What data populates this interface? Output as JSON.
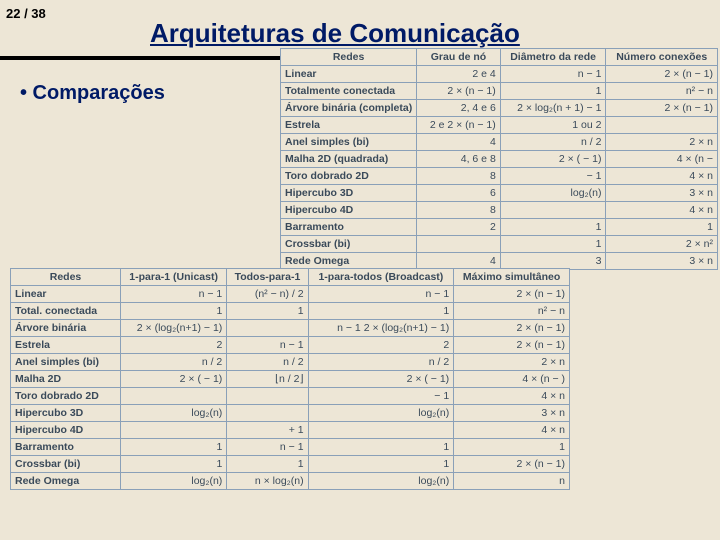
{
  "page_number": "22 / 38",
  "title": "Arquiteturas de Comunicação",
  "bullet_text": "•  Comparações",
  "table1": {
    "headers": [
      "Redes",
      "Grau de nó",
      "Diâmetro da rede",
      "Número conexões"
    ],
    "rows": [
      [
        "Linear",
        "2 e 4",
        "n − 1",
        "2 × (n − 1)"
      ],
      [
        "Totalmente conectada",
        "2 × (n − 1)",
        "1",
        "n² − n"
      ],
      [
        "Árvore binária (completa)",
        "2, 4 e 6",
        "2 × log₂(n + 1) − 1",
        "2 × (n − 1)"
      ],
      [
        "Estrela",
        "2 e 2 × (n − 1)",
        "1 ou 2",
        ""
      ],
      [
        "Anel simples (bi)",
        "4",
        "n / 2",
        "2 × n"
      ],
      [
        "Malha 2D (quadrada)",
        "4, 6 e 8",
        "2 × (     − 1)",
        "4 × (n −     "
      ],
      [
        "Toro dobrado 2D",
        "8",
        "     − 1",
        "4 × n"
      ],
      [
        "Hipercubo 3D",
        "6",
        "log₂(n)",
        "3 × n"
      ],
      [
        "Hipercubo 4D",
        "8",
        "",
        "4 × n"
      ],
      [
        "Barramento",
        "2",
        "1",
        "1"
      ],
      [
        "Crossbar (bi)",
        "",
        "1",
        "2 × n²"
      ],
      [
        "Rede Omega",
        "4",
        "3",
        "3 × n"
      ]
    ]
  },
  "table2": {
    "headers": [
      "Redes",
      "1-para-1 (Unicast)",
      "Todos-para-1",
      "1-para-todos (Broadcast)",
      "Máximo simultâneo"
    ],
    "rows": [
      [
        "Linear",
        "n − 1",
        "(n² − n) / 2",
        "n − 1",
        "2 × (n − 1)"
      ],
      [
        "Total. conectada",
        "1",
        "1",
        "1",
        "n² − n"
      ],
      [
        "Árvore binária",
        "2 × (log₂(n+1) − 1)",
        "",
        "n − 1 2 × (log₂(n+1) − 1)",
        "2 × (n − 1)"
      ],
      [
        "Estrela",
        "2",
        "n − 1",
        "2",
        "2 × (n − 1)"
      ],
      [
        "Anel simples (bi)",
        "n / 2",
        "n / 2",
        "n / 2",
        "2 × n"
      ],
      [
        "Malha 2D",
        "2 × (     − 1)",
        "⌊n / 2⌋",
        "2 × (     − 1)",
        "4 × (n −      )"
      ],
      [
        "Toro dobrado 2D",
        "",
        "",
        "     − 1",
        "4 × n"
      ],
      [
        "Hipercubo 3D",
        "log₂(n)",
        "",
        "log₂(n)",
        "3 × n"
      ],
      [
        "Hipercubo 4D",
        "",
        "+ 1",
        "",
        "4 × n"
      ],
      [
        "Barramento",
        "1",
        "n − 1",
        "1",
        "1"
      ],
      [
        "Crossbar (bi)",
        "1",
        "1",
        "1",
        "2 × (n − 1)"
      ],
      [
        "Rede Omega",
        "log₂(n)",
        "n × log₂(n)",
        "log₂(n)",
        "n"
      ]
    ]
  }
}
